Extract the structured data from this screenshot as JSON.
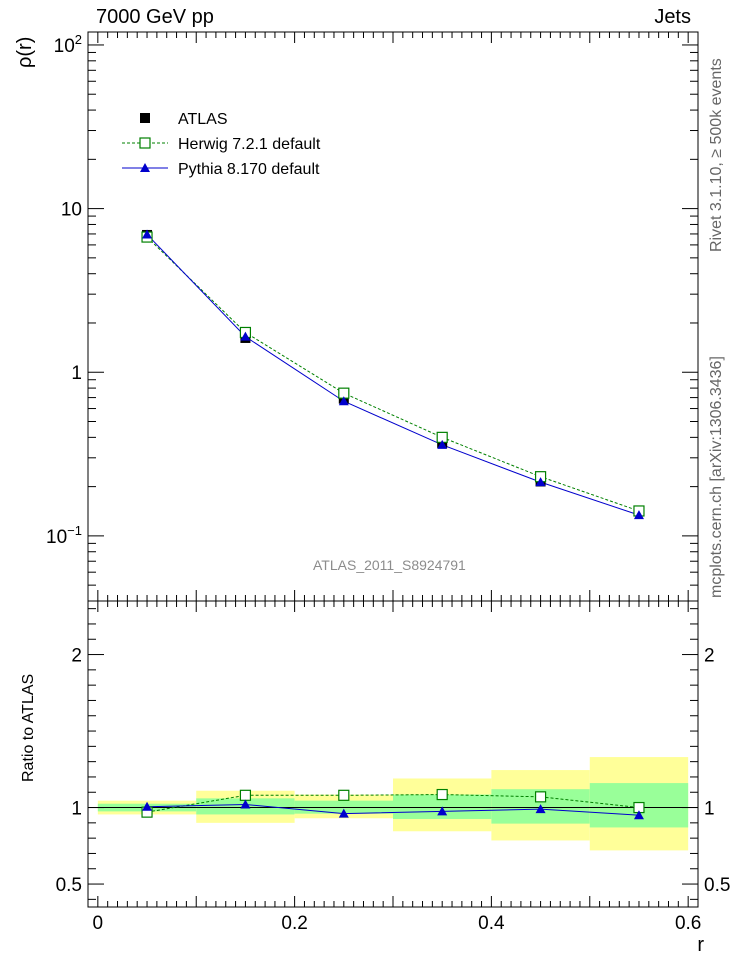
{
  "header": {
    "left": "7000 GeV pp",
    "right": "Jets"
  },
  "side_labels": {
    "top": "Rivet 3.1.10, ≥ 500k events",
    "bottom": "mcplots.cern.ch [arXiv:1306.3436]"
  },
  "watermark": "ATLAS_2011_S8924791",
  "colors": {
    "atlas": "#000000",
    "herwig": "#008000",
    "pythia": "#0000cc",
    "band_outer": "#ffff99",
    "band_inner": "#99ff99"
  },
  "chart_data": [
    {
      "type": "line",
      "panel": "main",
      "ylabel": "ρ(r)",
      "yscale": "log",
      "ylim": [
        0.04,
        120
      ],
      "xlim": [
        -0.01,
        0.61
      ],
      "y_ticks": [
        "10^{-1}",
        "1",
        "10",
        "10^{2}"
      ],
      "legend_position": "top-left",
      "series": [
        {
          "name": "ATLAS",
          "marker": "filled-square",
          "x": [
            0.05,
            0.15,
            0.25,
            0.35,
            0.45,
            0.55
          ],
          "y": [
            6.9,
            1.62,
            0.69,
            0.37,
            0.215,
            0.141
          ]
        },
        {
          "name": "Herwig 7.2.1 default",
          "marker": "open-square",
          "line": "dashed",
          "x": [
            0.05,
            0.15,
            0.25,
            0.35,
            0.45,
            0.55
          ],
          "y": [
            6.7,
            1.75,
            0.745,
            0.4,
            0.23,
            0.142
          ]
        },
        {
          "name": "Pythia 8.170 default",
          "marker": "triangle",
          "line": "solid",
          "x": [
            0.05,
            0.15,
            0.25,
            0.35,
            0.45,
            0.55
          ],
          "y": [
            6.95,
            1.65,
            0.665,
            0.36,
            0.213,
            0.134
          ]
        }
      ]
    },
    {
      "type": "line",
      "panel": "ratio",
      "xlabel": "r",
      "ylabel": "Ratio to ATLAS",
      "ylim": [
        0.35,
        2.35
      ],
      "xlim": [
        -0.01,
        0.61
      ],
      "y_ticks": [
        "0.5",
        "1",
        "2"
      ],
      "x_ticks": [
        "0",
        "0.2",
        "0.4",
        "0.6"
      ],
      "bands": [
        {
          "x0": 0.0,
          "x1": 0.1,
          "outer": [
            0.955,
            1.045
          ],
          "inner": [
            0.975,
            1.025
          ]
        },
        {
          "x0": 0.1,
          "x1": 0.2,
          "outer": [
            0.9,
            1.11
          ],
          "inner": [
            0.955,
            1.06
          ]
        },
        {
          "x0": 0.2,
          "x1": 0.3,
          "outer": [
            0.93,
            1.085
          ],
          "inner": [
            0.96,
            1.045
          ]
        },
        {
          "x0": 0.3,
          "x1": 0.4,
          "outer": [
            0.845,
            1.19
          ],
          "inner": [
            0.925,
            1.085
          ]
        },
        {
          "x0": 0.4,
          "x1": 0.5,
          "outer": [
            0.785,
            1.245
          ],
          "inner": [
            0.895,
            1.12
          ]
        },
        {
          "x0": 0.5,
          "x1": 0.6,
          "outer": [
            0.72,
            1.33
          ],
          "inner": [
            0.87,
            1.16
          ]
        }
      ],
      "series": [
        {
          "name": "Herwig 7.2.1 default",
          "marker": "open-square",
          "line": "dashed",
          "x": [
            0.05,
            0.15,
            0.25,
            0.35,
            0.45,
            0.55
          ],
          "y": [
            0.97,
            1.08,
            1.08,
            1.085,
            1.07,
            1.0
          ]
        },
        {
          "name": "Pythia 8.170 default",
          "marker": "triangle",
          "line": "solid",
          "x": [
            0.05,
            0.15,
            0.25,
            0.35,
            0.45,
            0.55
          ],
          "y": [
            1.005,
            1.02,
            0.96,
            0.975,
            0.99,
            0.95
          ]
        }
      ]
    }
  ]
}
